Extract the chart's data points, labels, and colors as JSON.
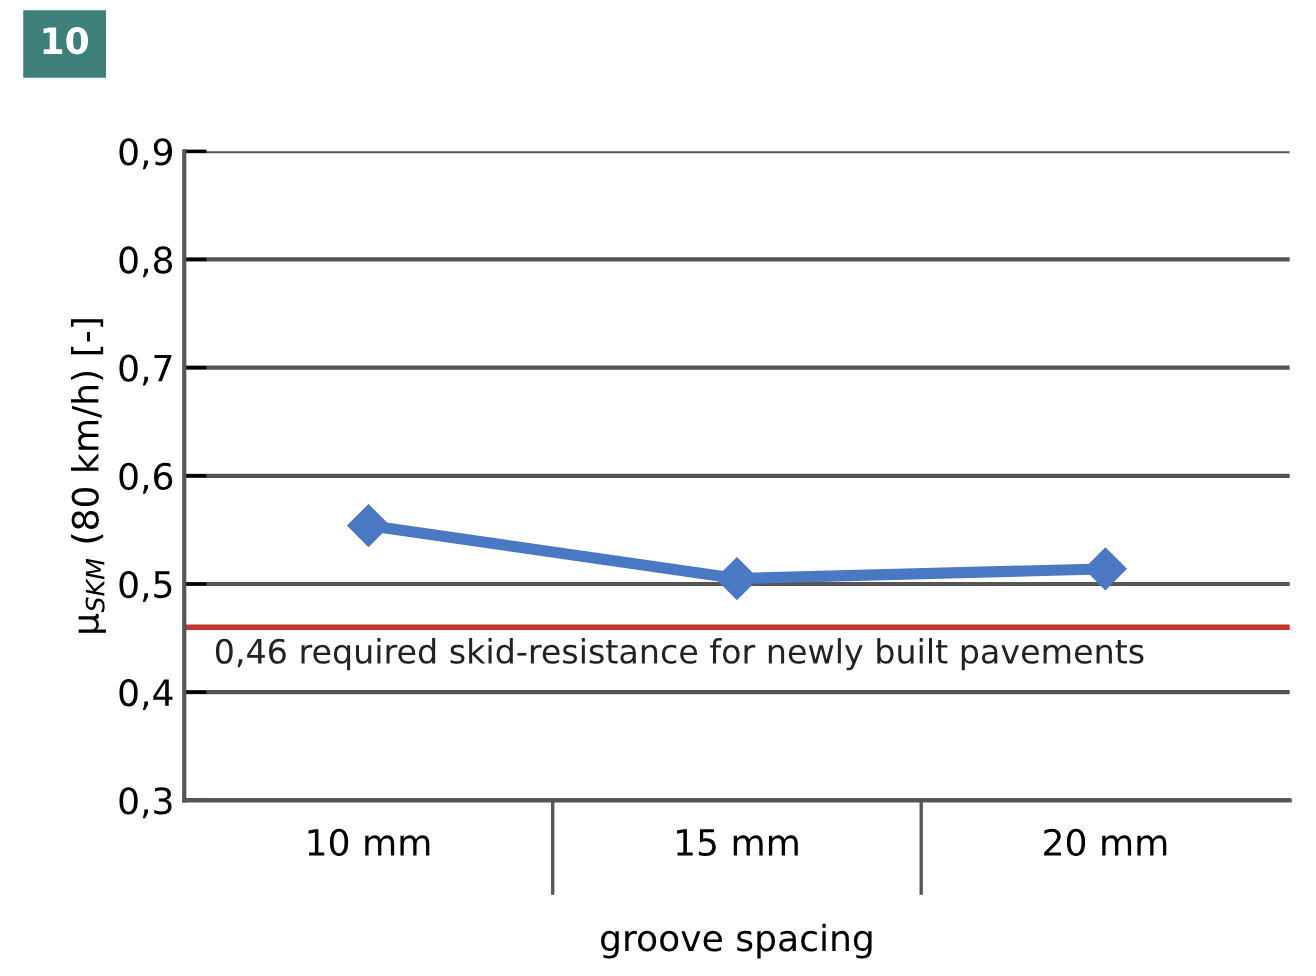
{
  "chart_data": {
    "type": "line",
    "xlabel": "groove spacing",
    "ylabel": "μ$_{SKM}$ (80 km/h) [-]",
    "categories": [
      "10 mm",
      "15 mm",
      "20 mm"
    ],
    "series": [
      {
        "color": "#4a78c2",
        "values": [
          0.554,
          0.505,
          0.514
        ]
      }
    ],
    "marker": "diamond",
    "line_style": "solid",
    "grid": "y",
    "legend": false,
    "ylim": [
      0.3,
      0.9
    ],
    "yticks": [
      {
        "value": 0.3,
        "label": "0,3"
      },
      {
        "value": 0.4,
        "label": "0,4"
      },
      {
        "value": 0.5,
        "label": "0,5"
      },
      {
        "value": 0.6,
        "label": "0,6"
      },
      {
        "value": 0.7,
        "label": "0,7"
      },
      {
        "value": 0.8,
        "label": "0,8"
      },
      {
        "value": 0.9,
        "label": "0,9"
      }
    ],
    "ref_lines": [
      {
        "axis": "y",
        "value": 0.46,
        "label": "0,46 required skid-resistance for newly built pavements",
        "color": "#c0392b",
        "line_style": "solid"
      }
    ],
    "annotations": [
      "10"
    ]
  }
}
